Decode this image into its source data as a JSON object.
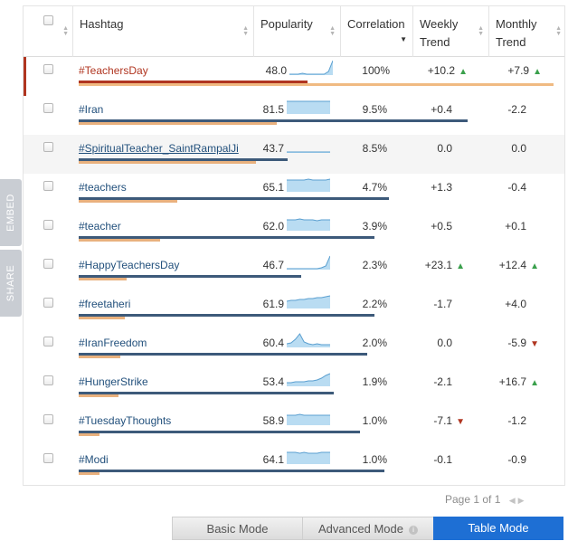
{
  "side_tabs": {
    "embed": "EMBED",
    "share": "SHARE"
  },
  "columns": {
    "hashtag": "Hashtag",
    "popularity": "Popularity",
    "correlation": "Correlation",
    "weekly_line1": "Weekly",
    "weekly_line2": "Trend",
    "monthly_line1": "Monthly",
    "monthly_line2": "Trend"
  },
  "rows": [
    {
      "tag": "#TeachersDay",
      "popularity": "48.0",
      "correlation": "100%",
      "weekly": "+10.2",
      "weekly_dir": "up",
      "monthly": "+7.9",
      "monthly_dir": "up",
      "pop_value": 48.0,
      "corr_value": 100,
      "spark": [
        1,
        1,
        1,
        2,
        1,
        1,
        1,
        1,
        1,
        4,
        16
      ]
    },
    {
      "tag": "#Iran",
      "popularity": "81.5",
      "correlation": "9.5%",
      "weekly": "+0.4",
      "weekly_dir": "",
      "monthly": "-2.2",
      "monthly_dir": "",
      "pop_value": 81.5,
      "corr_value": 9.5,
      "spark": [
        14,
        14,
        14,
        14,
        14,
        14,
        14,
        14,
        14,
        14,
        14
      ]
    },
    {
      "tag": "#SpiritualTeacher_SaintRampalJi",
      "popularity": "43.7",
      "correlation": "8.5%",
      "weekly": "0.0",
      "weekly_dir": "",
      "monthly": "0.0",
      "monthly_dir": "",
      "pop_value": 43.7,
      "corr_value": 8.5,
      "spark": [
        1,
        1,
        1,
        1,
        1,
        1,
        1,
        1,
        1,
        1,
        1
      ]
    },
    {
      "tag": "#teachers",
      "popularity": "65.1",
      "correlation": "4.7%",
      "weekly": "+1.3",
      "weekly_dir": "",
      "monthly": "-0.4",
      "monthly_dir": "",
      "pop_value": 65.1,
      "corr_value": 4.7,
      "spark": [
        13,
        13,
        13,
        13,
        13,
        14,
        13,
        13,
        13,
        13,
        14
      ]
    },
    {
      "tag": "#teacher",
      "popularity": "62.0",
      "correlation": "3.9%",
      "weekly": "+0.5",
      "weekly_dir": "",
      "monthly": "+0.1",
      "monthly_dir": "",
      "pop_value": 62.0,
      "corr_value": 3.9,
      "spark": [
        12,
        12,
        12,
        13,
        12,
        12,
        12,
        11,
        12,
        12,
        12
      ]
    },
    {
      "tag": "#HappyTeachersDay",
      "popularity": "46.7",
      "correlation": "2.3%",
      "weekly": "+23.1",
      "weekly_dir": "up",
      "monthly": "+12.4",
      "monthly_dir": "up",
      "pop_value": 46.7,
      "corr_value": 2.3,
      "spark": [
        1,
        1,
        1,
        1,
        1,
        1,
        1,
        1,
        2,
        4,
        15
      ]
    },
    {
      "tag": "#freetaheri",
      "popularity": "61.9",
      "correlation": "2.2%",
      "weekly": "-1.7",
      "weekly_dir": "",
      "monthly": "+4.0",
      "monthly_dir": "",
      "pop_value": 61.9,
      "corr_value": 2.2,
      "spark": [
        8,
        9,
        9,
        10,
        10,
        11,
        11,
        12,
        12,
        13,
        14
      ]
    },
    {
      "tag": "#IranFreedom",
      "popularity": "60.4",
      "correlation": "2.0%",
      "weekly": "0.0",
      "weekly_dir": "",
      "monthly": "-5.9",
      "monthly_dir": "down",
      "pop_value": 60.4,
      "corr_value": 2.0,
      "spark": [
        4,
        5,
        9,
        15,
        6,
        4,
        3,
        4,
        3,
        3,
        3
      ]
    },
    {
      "tag": "#HungerStrike",
      "popularity": "53.4",
      "correlation": "1.9%",
      "weekly": "-2.1",
      "weekly_dir": "",
      "monthly": "+16.7",
      "monthly_dir": "up",
      "pop_value": 53.4,
      "corr_value": 1.9,
      "spark": [
        4,
        4,
        5,
        5,
        5,
        6,
        6,
        7,
        9,
        12,
        14
      ]
    },
    {
      "tag": "#TuesdayThoughts",
      "popularity": "58.9",
      "correlation": "1.0%",
      "weekly": "-7.1",
      "weekly_dir": "down",
      "monthly": "-1.2",
      "monthly_dir": "",
      "pop_value": 58.9,
      "corr_value": 1.0,
      "spark": [
        11,
        11,
        11,
        12,
        11,
        11,
        11,
        11,
        11,
        11,
        11
      ]
    },
    {
      "tag": "#Modi",
      "popularity": "64.1",
      "correlation": "1.0%",
      "weekly": "-0.1",
      "weekly_dir": "",
      "monthly": "-0.9",
      "monthly_dir": "",
      "pop_value": 64.1,
      "corr_value": 1.0,
      "spark": [
        13,
        13,
        13,
        12,
        13,
        12,
        12,
        12,
        13,
        13,
        13
      ]
    }
  ],
  "pager": {
    "text": "Page 1 of 1"
  },
  "modes": {
    "basic": "Basic Mode",
    "advanced": "Advanced Mode",
    "table": "Table Mode"
  },
  "colors": {
    "accent_row": "#b03520",
    "trend_up": "#3aa04c",
    "trend_down": "#b03520",
    "table_mode": "#1e6fd4"
  }
}
